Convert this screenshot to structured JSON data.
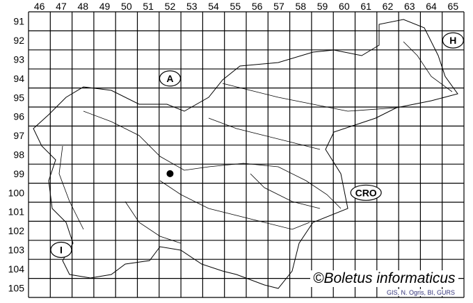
{
  "grid": {
    "columns": [
      "46",
      "47",
      "48",
      "49",
      "50",
      "51",
      "52",
      "53",
      "54",
      "55",
      "56",
      "57",
      "58",
      "59",
      "60",
      "61",
      "62",
      "63",
      "64",
      "65"
    ],
    "rows": [
      "91",
      "92",
      "93",
      "94",
      "95",
      "96",
      "97",
      "98",
      "99",
      "100",
      "101",
      "102",
      "103",
      "104",
      "105"
    ]
  },
  "countries": [
    {
      "code": "A",
      "cx_col": "52",
      "cy_row": "94"
    },
    {
      "code": "H",
      "cx_col": "65",
      "cy_row": "92"
    },
    {
      "code": "I",
      "cx_col": "47",
      "cy_row": "103"
    },
    {
      "code": "CRO",
      "cx_col": "61",
      "cy_row": "100"
    }
  ],
  "records": [
    {
      "col": "52",
      "row": "99"
    }
  ],
  "watermark": "©Boletus informaticus",
  "credits": "GIS, N. Ogris, BI, GURS",
  "colors": {
    "grid": "#000000",
    "dot": "#000000",
    "credits": "#33337a"
  }
}
